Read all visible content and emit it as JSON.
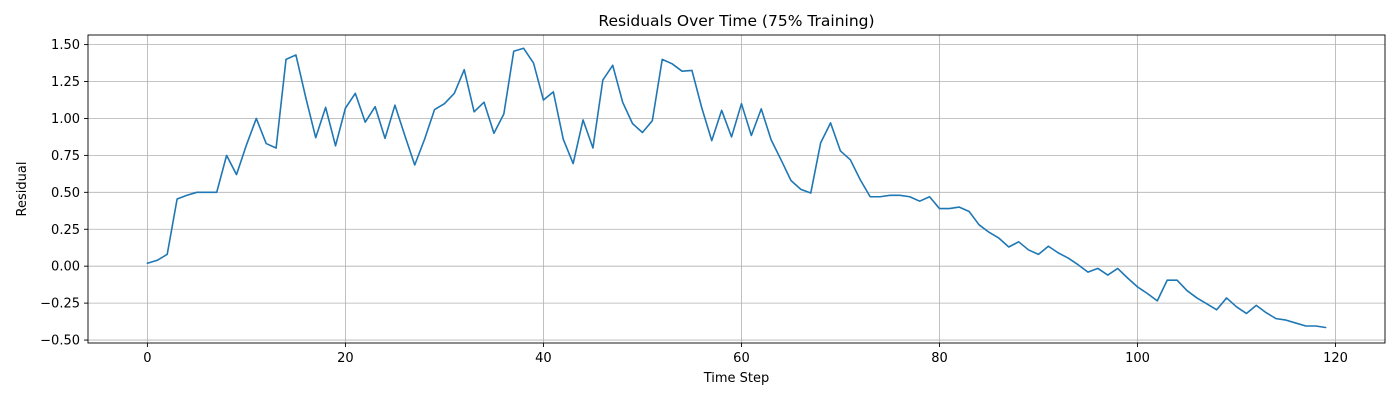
{
  "chart_data": {
    "type": "line",
    "title": "Residuals Over Time (75% Training)",
    "xlabel": "Time Step",
    "ylabel": "Residual",
    "xlim": [
      -6,
      125
    ],
    "ylim": [
      -0.52,
      1.565
    ],
    "xticks": [
      0,
      20,
      40,
      60,
      80,
      100,
      120
    ],
    "yticks": [
      -0.5,
      -0.25,
      0,
      0.25,
      0.5,
      0.75,
      1,
      1.25,
      1.5
    ],
    "ytick_labels": [
      "−0.50",
      "−0.25",
      "0.00",
      "0.25",
      "0.50",
      "0.75",
      "1.00",
      "1.25",
      "1.50"
    ],
    "grid": true,
    "line_color": "#1f77b4",
    "series": [
      {
        "x": [
          0,
          1,
          2,
          3,
          4,
          5,
          6,
          7,
          8,
          9,
          10,
          11,
          12,
          13,
          14,
          15,
          16,
          17,
          18,
          19,
          20,
          21,
          22,
          23,
          24,
          25,
          26,
          27,
          28,
          29,
          30,
          31,
          32,
          33,
          34,
          35,
          36,
          37,
          38,
          39,
          40,
          41,
          42,
          43,
          44,
          45,
          46,
          47,
          48,
          49,
          50,
          51,
          52,
          53,
          54,
          55,
          56,
          57,
          58,
          59,
          60,
          61,
          62,
          63,
          64,
          65,
          66,
          67,
          68,
          69,
          70,
          71,
          72,
          73,
          74,
          75,
          76,
          77,
          78,
          79,
          80,
          81,
          82,
          83,
          84,
          85,
          86,
          87,
          88,
          89,
          90,
          91,
          92,
          93,
          94,
          95,
          96,
          97,
          98,
          99,
          100,
          101,
          102,
          103,
          104,
          105,
          106,
          107,
          108,
          109,
          110,
          111,
          112,
          113,
          114,
          115,
          116,
          117,
          118,
          119
        ],
        "values": [
          0.02,
          0.04,
          0.08,
          0.455,
          0.48,
          0.5,
          0.5,
          0.5,
          0.75,
          0.62,
          0.82,
          1.0,
          0.83,
          0.8,
          1.4,
          1.43,
          1.14,
          0.87,
          1.075,
          0.815,
          1.07,
          1.17,
          0.975,
          1.08,
          0.865,
          1.09,
          0.885,
          0.685,
          0.86,
          1.06,
          1.1,
          1.17,
          1.33,
          1.045,
          1.11,
          0.9,
          1.03,
          1.455,
          1.475,
          1.375,
          1.125,
          1.18,
          0.86,
          0.695,
          0.99,
          0.8,
          1.26,
          1.36,
          1.11,
          0.965,
          0.905,
          0.985,
          1.4,
          1.37,
          1.32,
          1.325,
          1.07,
          0.85,
          1.055,
          0.875,
          1.1,
          0.885,
          1.065,
          0.855,
          0.72,
          0.58,
          0.52,
          0.495,
          0.835,
          0.97,
          0.78,
          0.72,
          0.585,
          0.47,
          0.47,
          0.48,
          0.48,
          0.47,
          0.44,
          0.47,
          0.39,
          0.39,
          0.4,
          0.37,
          0.28,
          0.23,
          0.19,
          0.13,
          0.165,
          0.11,
          0.08,
          0.135,
          0.09,
          0.055,
          0.01,
          -0.04,
          -0.015,
          -0.06,
          -0.015,
          -0.08,
          -0.14,
          -0.185,
          -0.235,
          -0.095,
          -0.095,
          -0.165,
          -0.215,
          -0.255,
          -0.295,
          -0.215,
          -0.275,
          -0.32,
          -0.265,
          -0.315,
          -0.355,
          -0.365,
          -0.385,
          -0.405,
          -0.405,
          -0.415
        ]
      }
    ]
  }
}
